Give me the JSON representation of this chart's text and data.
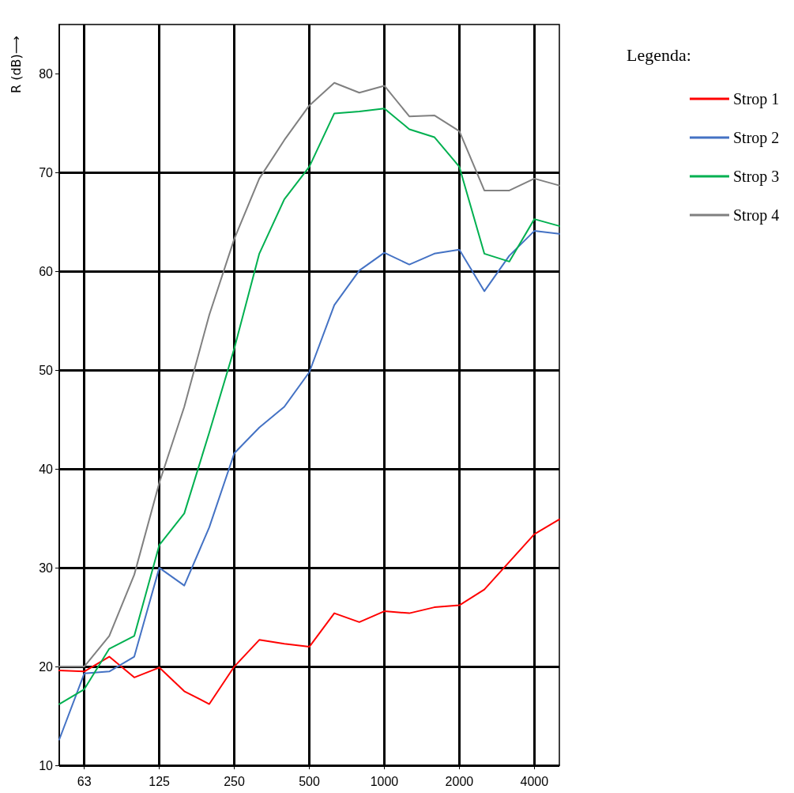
{
  "chart_data": {
    "type": "line",
    "ylabel": "R (dB)⟶",
    "legend_title": "Legenda:",
    "categories": [
      null,
      "63",
      null,
      null,
      "125",
      null,
      null,
      "250",
      null,
      null,
      "500",
      null,
      null,
      "1000",
      null,
      null,
      "2000",
      null,
      null,
      "4000",
      null
    ],
    "ylim": [
      10,
      85
    ],
    "yticks": [
      10,
      20,
      30,
      40,
      50,
      60,
      70,
      80
    ],
    "grid": true,
    "legend": "top right",
    "marker": "none",
    "line_style": "solid",
    "series": [
      {
        "name": "Strop 1",
        "color": "#ff0000",
        "values": [
          19.6,
          19.5,
          21.0,
          18.9,
          19.9,
          17.5,
          16.2,
          20.0,
          22.7,
          22.3,
          22.0,
          25.4,
          24.5,
          25.6,
          25.4,
          26.0,
          26.2,
          27.8,
          30.6,
          33.4,
          34.9
        ]
      },
      {
        "name": "Strop 2",
        "color": "#4472c4",
        "values": [
          12.6,
          19.3,
          19.5,
          21.0,
          30.0,
          28.2,
          34.1,
          41.6,
          44.2,
          46.3,
          49.8,
          56.6,
          60.1,
          61.9,
          60.7,
          61.8,
          62.2,
          58.0,
          61.6,
          64.1,
          63.8
        ]
      },
      {
        "name": "Strop 3",
        "color": "#00b050",
        "values": [
          16.2,
          17.7,
          21.8,
          23.1,
          32.3,
          35.5,
          43.7,
          52.2,
          61.8,
          67.3,
          70.6,
          76.0,
          76.2,
          76.5,
          74.4,
          73.6,
          70.6,
          61.8,
          61.0,
          65.3,
          64.6
        ]
      },
      {
        "name": "Strop 4",
        "color": "#808080",
        "values": [
          20.0,
          20.0,
          23.1,
          29.3,
          38.6,
          46.3,
          55.6,
          63.3,
          69.4,
          73.3,
          76.8,
          79.1,
          78.1,
          78.8,
          75.7,
          75.8,
          74.2,
          68.2,
          68.2,
          69.4,
          68.7
        ]
      }
    ]
  }
}
